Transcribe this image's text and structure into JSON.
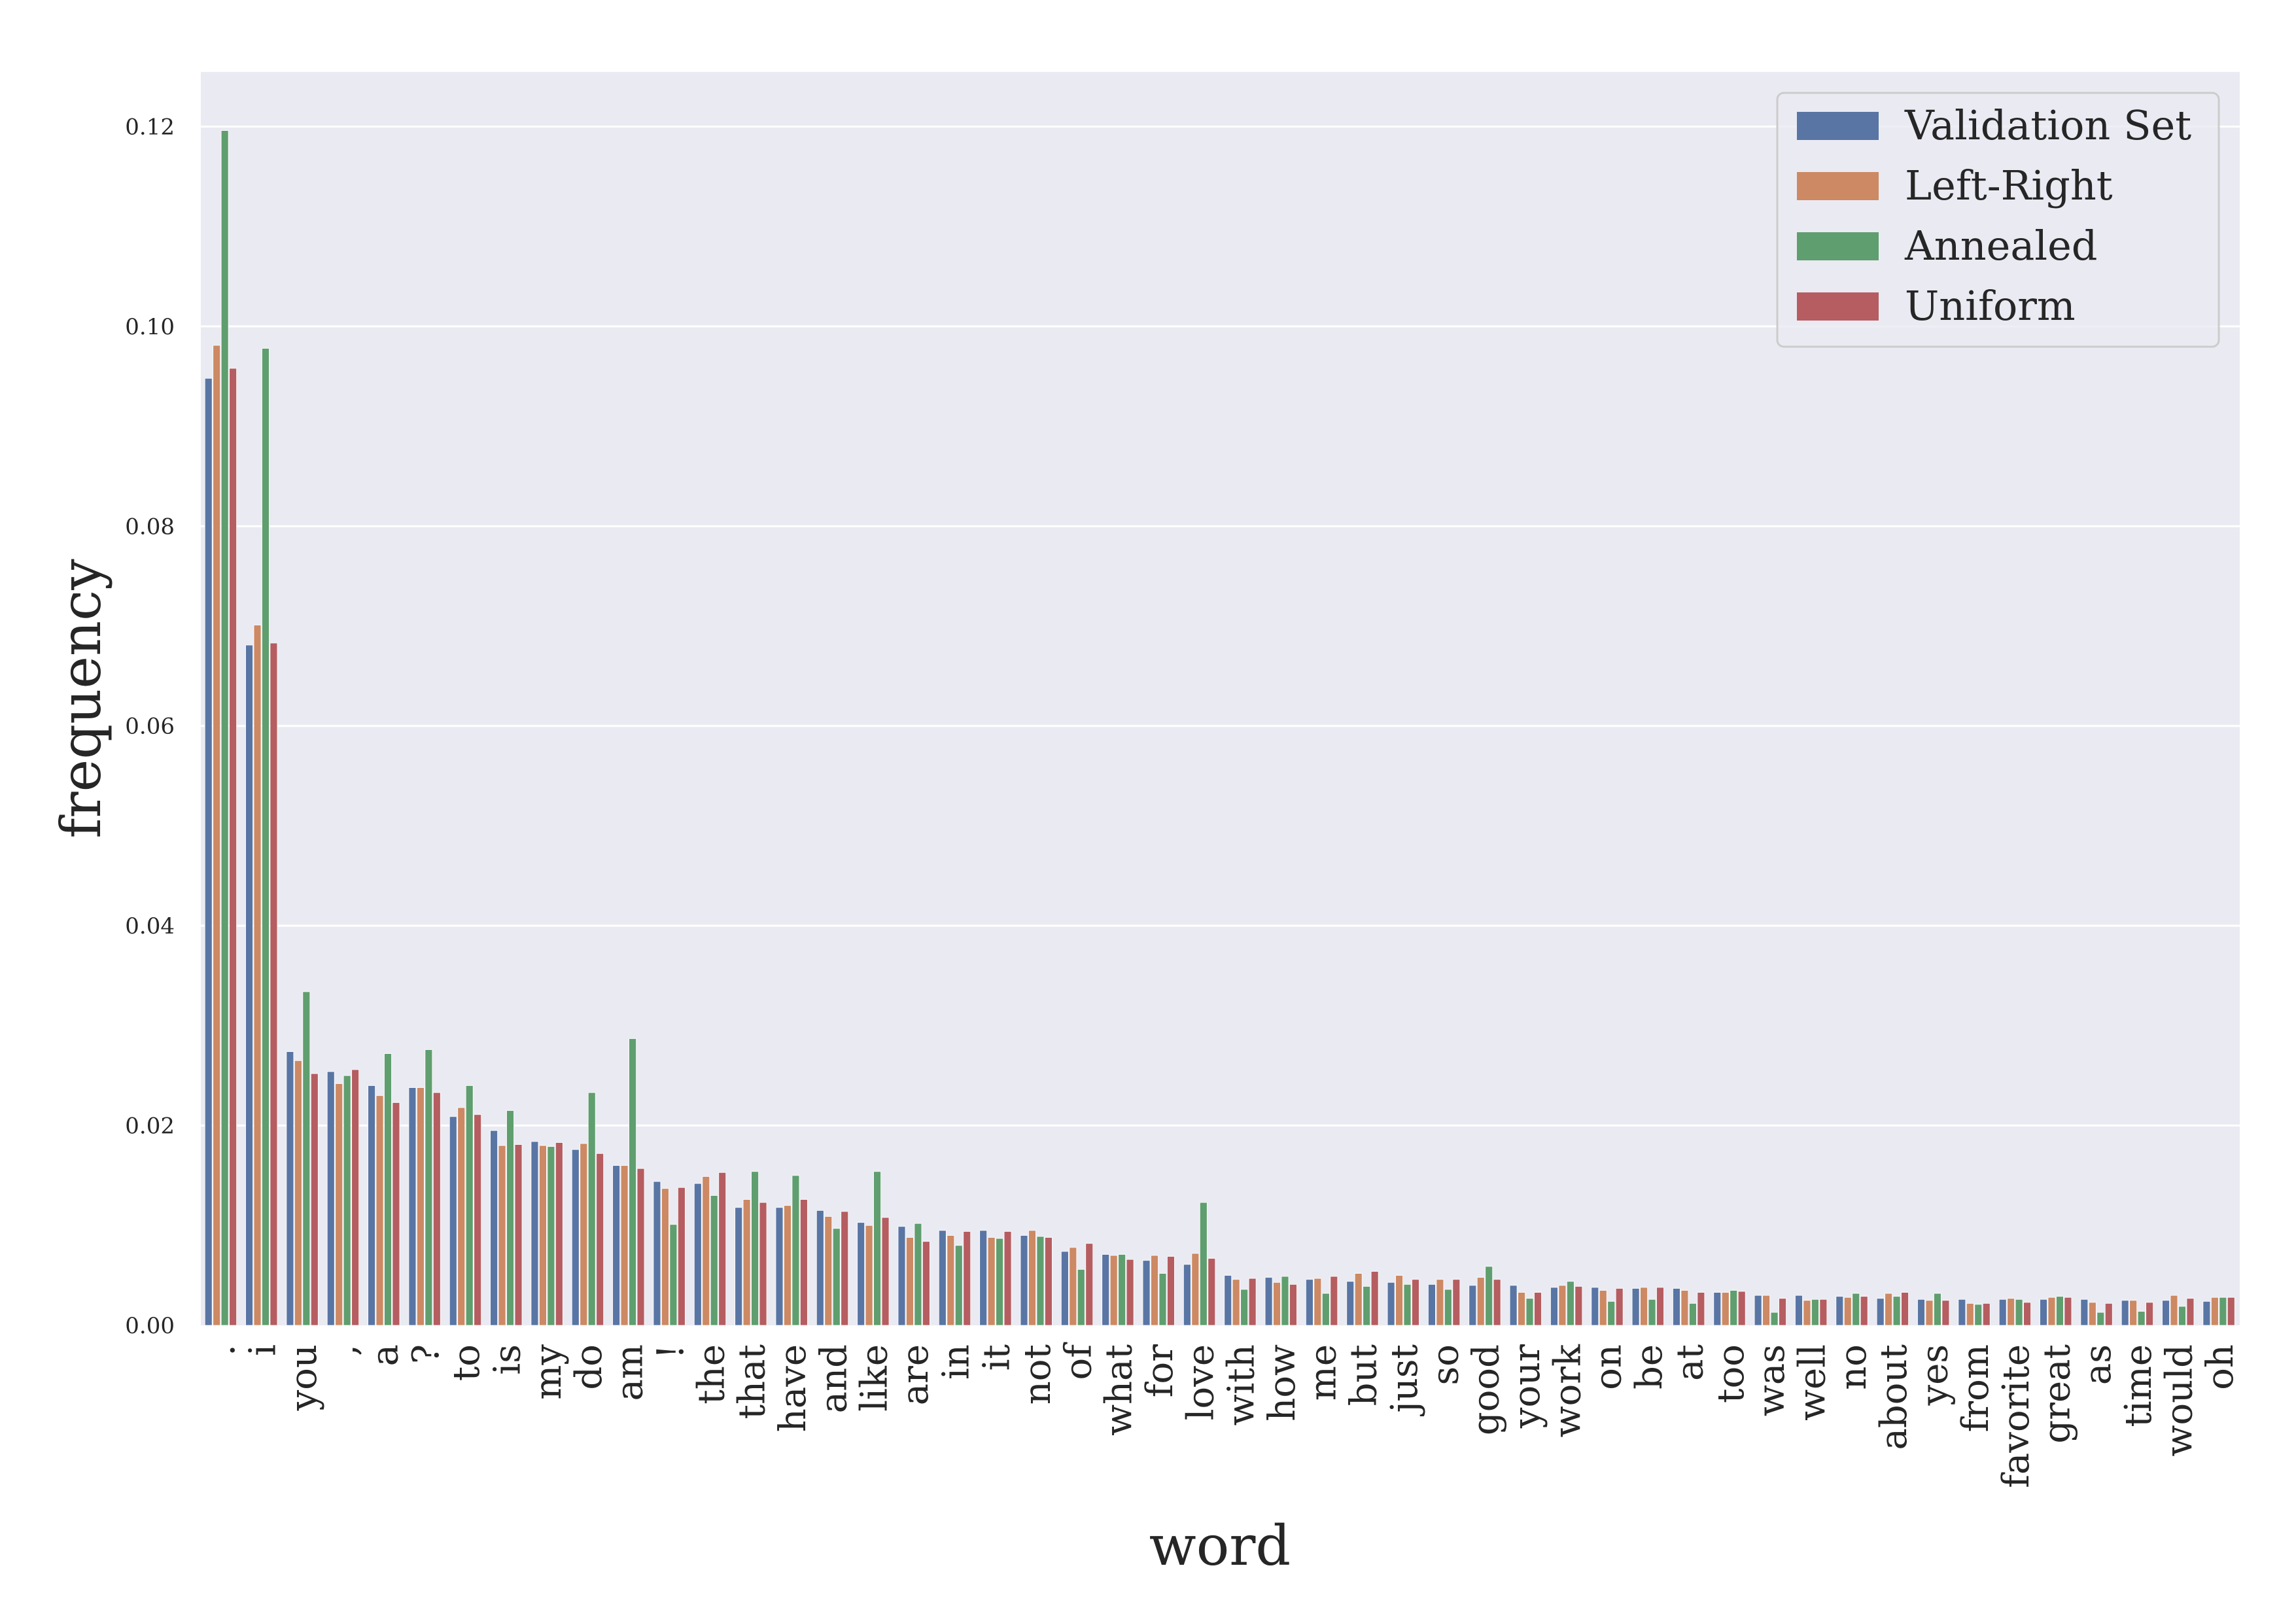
{
  "chart_data": {
    "type": "bar",
    "title": "",
    "xlabel": "word",
    "ylabel": "frequency",
    "ylim": [
      0,
      0.125
    ],
    "yticks": [
      "0.00",
      "0.02",
      "0.04",
      "0.06",
      "0.08",
      "0.10",
      "0.12"
    ],
    "grid": true,
    "legend_position": "top-right",
    "categories": [
      ".",
      "i",
      "you",
      ",",
      "a",
      "?",
      "to",
      "is",
      "my",
      "do",
      "am",
      "!",
      "the",
      "that",
      "have",
      "and",
      "like",
      "are",
      "in",
      "it",
      "not",
      "of",
      "what",
      "for",
      "love",
      "with",
      "how",
      "me",
      "but",
      "just",
      "so",
      "good",
      "your",
      "work",
      "on",
      "be",
      "at",
      "too",
      "was",
      "well",
      "no",
      "about",
      "yes",
      "from",
      "favorite",
      "great",
      "as",
      "time",
      "would",
      "oh"
    ],
    "series": [
      {
        "name": "Validation Set",
        "color": "#5875a4",
        "values": [
          0.0948,
          0.0681,
          0.0274,
          0.0254,
          0.024,
          0.0238,
          0.0209,
          0.0195,
          0.0184,
          0.0176,
          0.016,
          0.0144,
          0.0142,
          0.0118,
          0.0118,
          0.0115,
          0.0103,
          0.0099,
          0.0095,
          0.0095,
          0.009,
          0.0074,
          0.0071,
          0.0065,
          0.0061,
          0.005,
          0.0048,
          0.0046,
          0.0044,
          0.0043,
          0.0041,
          0.004,
          0.004,
          0.0038,
          0.0038,
          0.0037,
          0.0037,
          0.0033,
          0.003,
          0.003,
          0.0029,
          0.0027,
          0.0026,
          0.0026,
          0.0026,
          0.0026,
          0.0026,
          0.0025,
          0.0025,
          0.0024
        ]
      },
      {
        "name": "Left-Right",
        "color": "#cc8963",
        "values": [
          0.0981,
          0.0701,
          0.0265,
          0.0242,
          0.023,
          0.0238,
          0.0218,
          0.018,
          0.018,
          0.0182,
          0.016,
          0.0137,
          0.0149,
          0.0126,
          0.012,
          0.0109,
          0.01,
          0.0088,
          0.009,
          0.0088,
          0.0095,
          0.0078,
          0.007,
          0.007,
          0.0072,
          0.0046,
          0.0043,
          0.0047,
          0.0052,
          0.005,
          0.0046,
          0.0048,
          0.0033,
          0.004,
          0.0035,
          0.0038,
          0.0035,
          0.0033,
          0.003,
          0.0025,
          0.0028,
          0.0032,
          0.0025,
          0.0022,
          0.0027,
          0.0028,
          0.0023,
          0.0025,
          0.003,
          0.0028
        ]
      },
      {
        "name": "Annealed",
        "color": "#5f9e6e",
        "values": [
          0.1196,
          0.0978,
          0.0334,
          0.025,
          0.0272,
          0.0276,
          0.024,
          0.0215,
          0.0179,
          0.0233,
          0.0287,
          0.0101,
          0.013,
          0.0154,
          0.015,
          0.0097,
          0.0154,
          0.0102,
          0.008,
          0.0087,
          0.0089,
          0.0056,
          0.0071,
          0.0052,
          0.0123,
          0.0036,
          0.0049,
          0.0032,
          0.0039,
          0.0041,
          0.0036,
          0.0059,
          0.0027,
          0.0044,
          0.0024,
          0.0026,
          0.0022,
          0.0035,
          0.0013,
          0.0026,
          0.0032,
          0.0029,
          0.0032,
          0.0021,
          0.0026,
          0.0029,
          0.0013,
          0.0014,
          0.0019,
          0.0028
        ]
      },
      {
        "name": "Uniform",
        "color": "#b55d60",
        "values": [
          0.0958,
          0.0683,
          0.0252,
          0.0256,
          0.0223,
          0.0233,
          0.0211,
          0.0181,
          0.0183,
          0.0172,
          0.0157,
          0.0138,
          0.0153,
          0.0123,
          0.0126,
          0.0114,
          0.0108,
          0.0084,
          0.0094,
          0.0094,
          0.0088,
          0.0082,
          0.0066,
          0.0069,
          0.0067,
          0.0047,
          0.0041,
          0.0049,
          0.0054,
          0.0046,
          0.0046,
          0.0046,
          0.0033,
          0.0039,
          0.0037,
          0.0038,
          0.0033,
          0.0034,
          0.0027,
          0.0026,
          0.0029,
          0.0033,
          0.0025,
          0.0022,
          0.0023,
          0.0028,
          0.0022,
          0.0023,
          0.0027,
          0.0028
        ]
      }
    ]
  },
  "colors": {
    "plot_background": "#eaeaf2",
    "grid": "#ffffff",
    "text": "#262626"
  }
}
